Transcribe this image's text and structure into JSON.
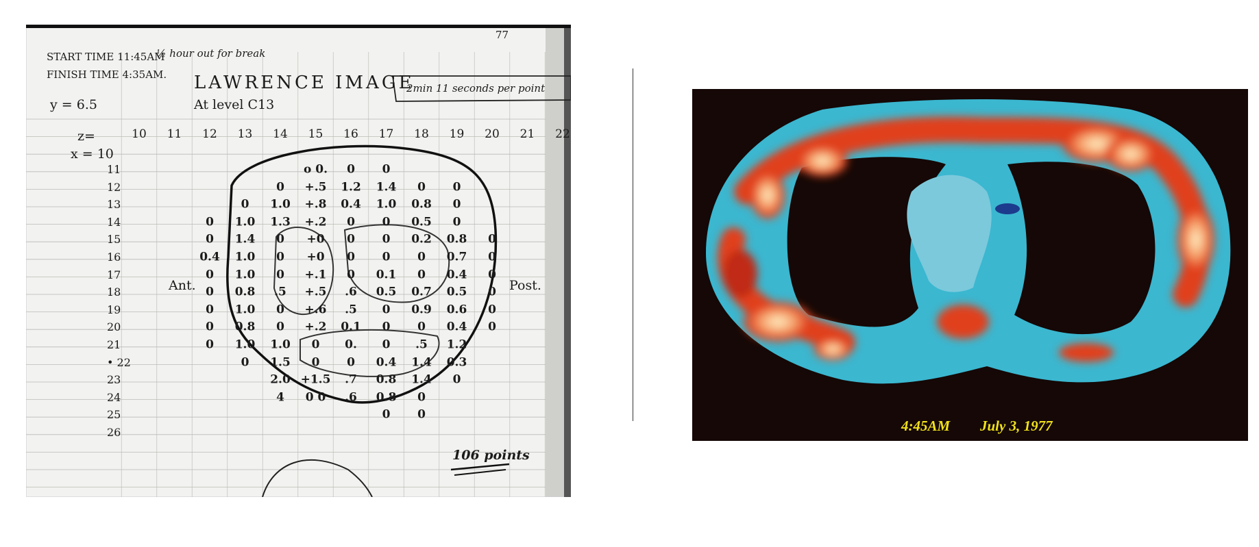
{
  "notebook": {
    "page_number": "77",
    "start_time": "START TIME 11:45AM",
    "break_note": "½ hour out for break",
    "finish_time": "FINISH TIME 4:35AM.",
    "title": "LAWRENCE IMAGE",
    "level": "At level C13",
    "timing_note": "2min 11 seconds per point",
    "y_value": "y = 6.5",
    "z_label": "z=",
    "x_label": "x = 10",
    "columns": [
      "10",
      "11",
      "12",
      "13",
      "14",
      "15",
      "16",
      "17",
      "18",
      "19",
      "20",
      "21",
      "22"
    ],
    "rows": [
      "11",
      "12",
      "13",
      "14",
      "15",
      "16",
      "17",
      "18",
      "19",
      "20",
      "21",
      "• 22",
      "23",
      "24",
      "25",
      "26"
    ],
    "cells": [
      {
        "r": 0,
        "c": 5,
        "v": "o 0."
      },
      {
        "r": 0,
        "c": 6,
        "v": "0"
      },
      {
        "r": 0,
        "c": 7,
        "v": "0"
      },
      {
        "r": 1,
        "c": 4,
        "v": "0"
      },
      {
        "r": 1,
        "c": 5,
        "v": "+.5"
      },
      {
        "r": 1,
        "c": 6,
        "v": "1.2"
      },
      {
        "r": 1,
        "c": 7,
        "v": "1.4"
      },
      {
        "r": 1,
        "c": 8,
        "v": "0"
      },
      {
        "r": 1,
        "c": 9,
        "v": "0"
      },
      {
        "r": 2,
        "c": 3,
        "v": "0"
      },
      {
        "r": 2,
        "c": 4,
        "v": "1.0"
      },
      {
        "r": 2,
        "c": 5,
        "v": "+.8"
      },
      {
        "r": 2,
        "c": 6,
        "v": "0.4"
      },
      {
        "r": 2,
        "c": 7,
        "v": "1.0"
      },
      {
        "r": 2,
        "c": 8,
        "v": "0.8"
      },
      {
        "r": 2,
        "c": 9,
        "v": "0"
      },
      {
        "r": 3,
        "c": 2,
        "v": "0"
      },
      {
        "r": 3,
        "c": 3,
        "v": "1.0"
      },
      {
        "r": 3,
        "c": 4,
        "v": "1.3"
      },
      {
        "r": 3,
        "c": 5,
        "v": "+.2"
      },
      {
        "r": 3,
        "c": 6,
        "v": "0"
      },
      {
        "r": 3,
        "c": 7,
        "v": "0"
      },
      {
        "r": 3,
        "c": 8,
        "v": "0.5"
      },
      {
        "r": 3,
        "c": 9,
        "v": "0"
      },
      {
        "r": 4,
        "c": 2,
        "v": "0"
      },
      {
        "r": 4,
        "c": 3,
        "v": "1.4"
      },
      {
        "r": 4,
        "c": 4,
        "v": "0"
      },
      {
        "r": 4,
        "c": 5,
        "v": "+0"
      },
      {
        "r": 4,
        "c": 6,
        "v": "0"
      },
      {
        "r": 4,
        "c": 7,
        "v": "0"
      },
      {
        "r": 4,
        "c": 8,
        "v": "0.2"
      },
      {
        "r": 4,
        "c": 9,
        "v": "0.8"
      },
      {
        "r": 4,
        "c": 10,
        "v": "0"
      },
      {
        "r": 5,
        "c": 2,
        "v": "0.4"
      },
      {
        "r": 5,
        "c": 3,
        "v": "1.0"
      },
      {
        "r": 5,
        "c": 4,
        "v": "0"
      },
      {
        "r": 5,
        "c": 5,
        "v": "+0"
      },
      {
        "r": 5,
        "c": 6,
        "v": "0"
      },
      {
        "r": 5,
        "c": 7,
        "v": "0"
      },
      {
        "r": 5,
        "c": 8,
        "v": "0"
      },
      {
        "r": 5,
        "c": 9,
        "v": "0.7"
      },
      {
        "r": 5,
        "c": 10,
        "v": "0"
      },
      {
        "r": 6,
        "c": 2,
        "v": "0"
      },
      {
        "r": 6,
        "c": 3,
        "v": "1.0"
      },
      {
        "r": 6,
        "c": 4,
        "v": "0"
      },
      {
        "r": 6,
        "c": 5,
        "v": "+.1"
      },
      {
        "r": 6,
        "c": 6,
        "v": "0"
      },
      {
        "r": 6,
        "c": 7,
        "v": "0.1"
      },
      {
        "r": 6,
        "c": 8,
        "v": "0"
      },
      {
        "r": 6,
        "c": 9,
        "v": "0.4"
      },
      {
        "r": 6,
        "c": 10,
        "v": "0"
      },
      {
        "r": 7,
        "c": 2,
        "v": "0"
      },
      {
        "r": 7,
        "c": 3,
        "v": "0.8"
      },
      {
        "r": 7,
        "c": 4,
        "v": ".5"
      },
      {
        "r": 7,
        "c": 5,
        "v": "+.5"
      },
      {
        "r": 7,
        "c": 6,
        "v": ".6"
      },
      {
        "r": 7,
        "c": 7,
        "v": "0.5"
      },
      {
        "r": 7,
        "c": 8,
        "v": "0.7"
      },
      {
        "r": 7,
        "c": 9,
        "v": "0.5"
      },
      {
        "r": 7,
        "c": 10,
        "v": "0"
      },
      {
        "r": 8,
        "c": 2,
        "v": "0"
      },
      {
        "r": 8,
        "c": 3,
        "v": "1.0"
      },
      {
        "r": 8,
        "c": 4,
        "v": "0"
      },
      {
        "r": 8,
        "c": 5,
        "v": "+.6"
      },
      {
        "r": 8,
        "c": 6,
        "v": ".5"
      },
      {
        "r": 8,
        "c": 7,
        "v": "0"
      },
      {
        "r": 8,
        "c": 8,
        "v": "0.9"
      },
      {
        "r": 8,
        "c": 9,
        "v": "0.6"
      },
      {
        "r": 8,
        "c": 10,
        "v": "0"
      },
      {
        "r": 9,
        "c": 2,
        "v": "0"
      },
      {
        "r": 9,
        "c": 3,
        "v": "0.8"
      },
      {
        "r": 9,
        "c": 4,
        "v": "0"
      },
      {
        "r": 9,
        "c": 5,
        "v": "+.2"
      },
      {
        "r": 9,
        "c": 6,
        "v": "0.1"
      },
      {
        "r": 9,
        "c": 7,
        "v": "0"
      },
      {
        "r": 9,
        "c": 8,
        "v": "0"
      },
      {
        "r": 9,
        "c": 9,
        "v": "0.4"
      },
      {
        "r": 9,
        "c": 10,
        "v": "0"
      },
      {
        "r": 10,
        "c": 2,
        "v": "0"
      },
      {
        "r": 10,
        "c": 3,
        "v": "1.0"
      },
      {
        "r": 10,
        "c": 4,
        "v": "1.0"
      },
      {
        "r": 10,
        "c": 5,
        "v": "0"
      },
      {
        "r": 10,
        "c": 6,
        "v": "0."
      },
      {
        "r": 10,
        "c": 7,
        "v": "0"
      },
      {
        "r": 10,
        "c": 8,
        "v": ".5"
      },
      {
        "r": 10,
        "c": 9,
        "v": "1.2"
      },
      {
        "r": 11,
        "c": 3,
        "v": "0"
      },
      {
        "r": 11,
        "c": 4,
        "v": "1.5"
      },
      {
        "r": 11,
        "c": 5,
        "v": "0"
      },
      {
        "r": 11,
        "c": 6,
        "v": "0"
      },
      {
        "r": 11,
        "c": 7,
        "v": "0.4"
      },
      {
        "r": 11,
        "c": 8,
        "v": "1.4"
      },
      {
        "r": 11,
        "c": 9,
        "v": "0.3"
      },
      {
        "r": 12,
        "c": 4,
        "v": "2.0"
      },
      {
        "r": 12,
        "c": 5,
        "v": "+1.5"
      },
      {
        "r": 12,
        "c": 6,
        "v": ".7"
      },
      {
        "r": 12,
        "c": 7,
        "v": "0.8"
      },
      {
        "r": 12,
        "c": 8,
        "v": "1.4"
      },
      {
        "r": 12,
        "c": 9,
        "v": "0"
      },
      {
        "r": 13,
        "c": 4,
        "v": "4"
      },
      {
        "r": 13,
        "c": 5,
        "v": "0 0"
      },
      {
        "r": 13,
        "c": 6,
        "v": ".6"
      },
      {
        "r": 13,
        "c": 7,
        "v": "0.8"
      },
      {
        "r": 13,
        "c": 8,
        "v": "0"
      },
      {
        "r": 14,
        "c": 7,
        "v": "0"
      },
      {
        "r": 14,
        "c": 8,
        "v": "0"
      }
    ],
    "anterior_label": "Ant.",
    "posterior_label": "Post.",
    "points_total": "106 points"
  },
  "scan": {
    "time": "4:45AM",
    "date": "July 3, 1977",
    "colors": {
      "background": "#150806",
      "tissue_cyan": "#3bb7d0",
      "tissue_light": "#7cc9dc",
      "signal_red": "#e0401c",
      "signal_peak": "#fff3c8",
      "caption_yellow": "#f2e21a"
    }
  }
}
